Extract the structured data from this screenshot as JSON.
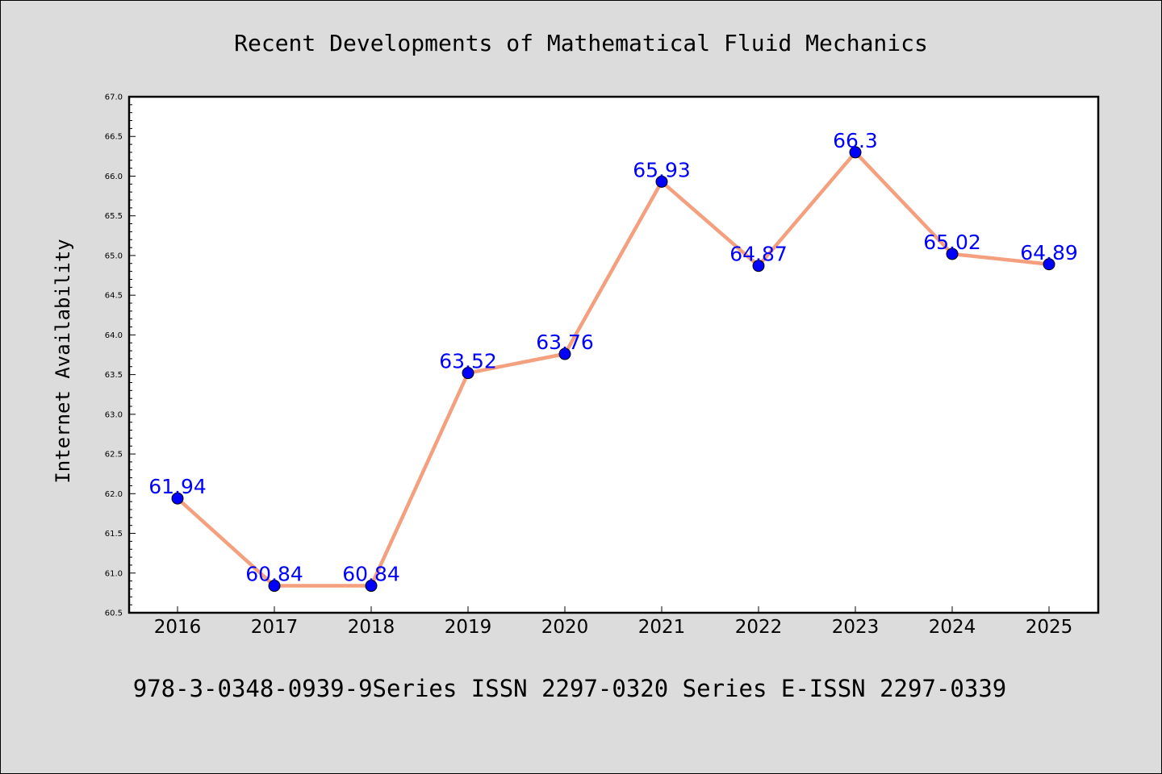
{
  "chart_data": {
    "type": "line",
    "title": "Recent Developments of Mathematical Fluid Mechanics",
    "ylabel": "Internet Availability",
    "xlabel": "",
    "footer": "978-3-0348-0939-9Series ISSN 2297-0320 Series E-ISSN 2297-0339",
    "categories": [
      "2016",
      "2017",
      "2018",
      "2019",
      "2020",
      "2021",
      "2022",
      "2023",
      "2024",
      "2025"
    ],
    "values": [
      61.94,
      60.84,
      60.84,
      63.52,
      63.76,
      65.93,
      64.87,
      66.3,
      65.02,
      64.89
    ],
    "data_labels": [
      "61.94",
      "60.84",
      "60.84",
      "63.52",
      "63.76",
      "65.93",
      "64.87",
      "66.3",
      "65.02",
      "64.89"
    ],
    "ylim": [
      60.5,
      67.0
    ],
    "yticks": [
      "60.5",
      "61.0",
      "61.5",
      "62.0",
      "62.5",
      "63.0",
      "63.5",
      "64.0",
      "64.5",
      "65.0",
      "65.5",
      "66.0",
      "66.5",
      "67.0"
    ],
    "grid": false,
    "colors": {
      "line": "#f4a07e",
      "marker": "#0000ff",
      "label": "#0000ff",
      "background": "#dcdcdc",
      "plot_background": "#ffffff"
    }
  }
}
